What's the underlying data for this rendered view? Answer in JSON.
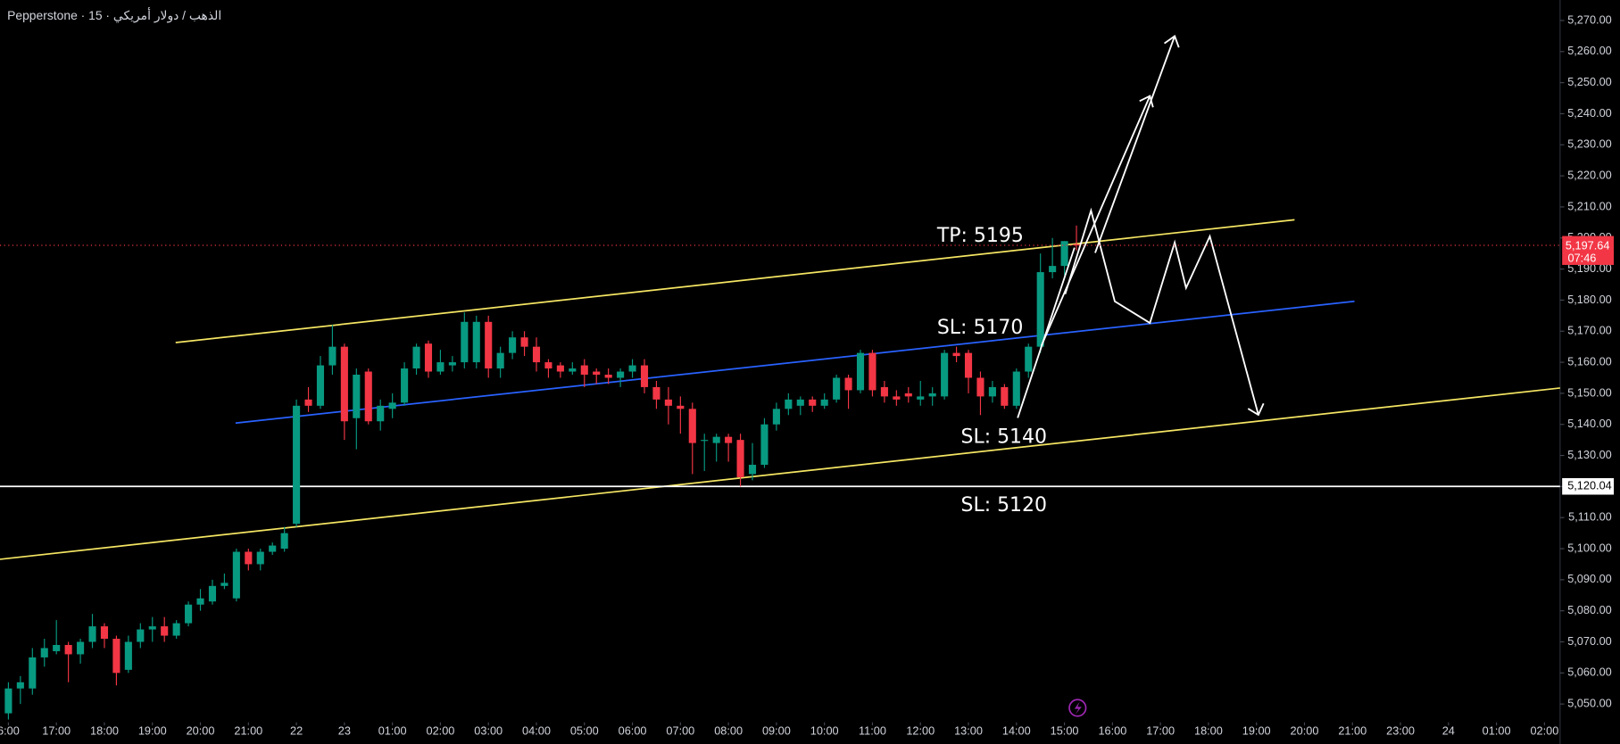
{
  "chart_data": {
    "type": "candlestick",
    "title": "Pepperstone · 15 · الذهب / دولار أمريكي",
    "up_color": "#089981",
    "down_color": "#f23645",
    "open": [
      5047,
      5055,
      5055,
      5065,
      5067,
      5069,
      5066,
      5070,
      5075,
      5071,
      5061,
      5070,
      5074,
      5075,
      5072,
      5076,
      5082,
      5083,
      5088,
      5084,
      5099,
      5095,
      5099,
      5100,
      5108,
      5148,
      5146,
      5159,
      5165,
      5142,
      5157,
      5141,
      5145,
      5147,
      5158,
      5166,
      5157,
      5159,
      5160,
      5160,
      5173,
      5158,
      5163,
      5168,
      5165,
      5160,
      5159,
      5157,
      5159,
      5157,
      5156,
      5155,
      5157,
      5159,
      5152,
      5148,
      5146,
      5145,
      5135,
      5134,
      5136,
      5135,
      5124,
      5127,
      5140,
      5145,
      5146,
      5148,
      5146,
      5148,
      5155,
      5151,
      5163,
      5152,
      5149,
      5150,
      5148,
      5149,
      5149,
      5163,
      5163,
      5155,
      5149,
      5152,
      5146,
      5157,
      5165,
      5189,
      5191,
      5198
    ],
    "high": [
      5057,
      5059,
      5068,
      5071,
      5077,
      5070,
      5071,
      5079,
      5076,
      5072,
      5072,
      5076,
      5078,
      5078,
      5077,
      5083,
      5087,
      5090,
      5092,
      5100,
      5100,
      5100,
      5102,
      5107,
      5148,
      5152,
      5162,
      5172,
      5166,
      5158,
      5158,
      5148,
      5150,
      5160,
      5166,
      5167,
      5164,
      5162,
      5176,
      5175,
      5175,
      5165,
      5170,
      5170,
      5168,
      5161,
      5160,
      5160,
      5161,
      5158,
      5158,
      5158,
      5161,
      5161,
      5154,
      5152,
      5149,
      5147,
      5137,
      5137,
      5137,
      5137,
      5134,
      5142,
      5147,
      5150,
      5149,
      5149,
      5150,
      5156,
      5156,
      5164,
      5164,
      5154,
      5151,
      5152,
      5154,
      5152,
      5164,
      5165,
      5164,
      5157,
      5154,
      5153,
      5158,
      5166,
      5195,
      5200,
      5199,
      5204
    ],
    "low": [
      5045,
      5050,
      5053,
      5062,
      5066,
      5057,
      5063,
      5068,
      5068,
      5056,
      5060,
      5068,
      5070,
      5070,
      5071,
      5075,
      5080,
      5082,
      5087,
      5083,
      5093,
      5093,
      5098,
      5099,
      5107,
      5144,
      5145,
      5156,
      5135,
      5132,
      5140,
      5138,
      5142,
      5146,
      5156,
      5155,
      5156,
      5157,
      5158,
      5158,
      5155,
      5155,
      5161,
      5162,
      5157,
      5155,
      5155,
      5156,
      5152,
      5153,
      5153,
      5152,
      5155,
      5150,
      5145,
      5140,
      5137,
      5124,
      5125,
      5128,
      5128,
      5120,
      5122,
      5126,
      5138,
      5143,
      5143,
      5144,
      5145,
      5147,
      5145,
      5150,
      5149,
      5147,
      5146,
      5147,
      5146,
      5146,
      5148,
      5160,
      5150,
      5143,
      5147,
      5145,
      5145,
      5155,
      5163,
      5187,
      5188,
      5196
    ],
    "close": [
      5055,
      5057,
      5065,
      5068,
      5069,
      5066,
      5070,
      5075,
      5071,
      5060,
      5070,
      5074,
      5075,
      5072,
      5076,
      5082,
      5084,
      5088,
      5089,
      5099,
      5095,
      5099,
      5101,
      5105,
      5146,
      5146,
      5159,
      5165,
      5141,
      5156,
      5141,
      5146,
      5147,
      5158,
      5165,
      5157,
      5160,
      5160,
      5173,
      5173,
      5158,
      5163,
      5168,
      5165,
      5160,
      5158,
      5157,
      5158,
      5156,
      5156,
      5155,
      5157,
      5159,
      5152,
      5148,
      5146,
      5145,
      5134,
      5135,
      5136,
      5134,
      5123,
      5127,
      5140,
      5145,
      5148,
      5148,
      5146,
      5148,
      5155,
      5151,
      5163,
      5151,
      5149,
      5148,
      5149,
      5149,
      5150,
      5163,
      5162,
      5155,
      5149,
      5152,
      5146,
      5157,
      5165,
      5189,
      5191,
      5199,
      5197.64
    ],
    "xlim": [
      -0.7,
      129.3
    ],
    "xticks": [
      {
        "value": 0,
        "label": "6:00"
      },
      {
        "value": 4,
        "label": "17:00"
      },
      {
        "value": 8,
        "label": "18:00"
      },
      {
        "value": 12,
        "label": "19:00"
      },
      {
        "value": 16,
        "label": "20:00"
      },
      {
        "value": 20,
        "label": "21:00"
      },
      {
        "value": 24,
        "label": "22"
      },
      {
        "value": 28,
        "label": "23"
      },
      {
        "value": 32,
        "label": "01:00"
      },
      {
        "value": 36,
        "label": "02:00"
      },
      {
        "value": 40,
        "label": "03:00"
      },
      {
        "value": 44,
        "label": "04:00"
      },
      {
        "value": 48,
        "label": "05:00"
      },
      {
        "value": 52,
        "label": "06:00"
      },
      {
        "value": 56,
        "label": "07:00"
      },
      {
        "value": 60,
        "label": "08:00"
      },
      {
        "value": 64,
        "label": "09:00"
      },
      {
        "value": 68,
        "label": "10:00"
      },
      {
        "value": 72,
        "label": "11:00"
      },
      {
        "value": 76,
        "label": "12:00"
      },
      {
        "value": 80,
        "label": "13:00"
      },
      {
        "value": 84,
        "label": "14:00"
      },
      {
        "value": 88,
        "label": "15:00"
      },
      {
        "value": 92,
        "label": "16:00"
      },
      {
        "value": 96,
        "label": "17:00"
      },
      {
        "value": 100,
        "label": "18:00"
      },
      {
        "value": 104,
        "label": "19:00"
      },
      {
        "value": 108,
        "label": "20:00"
      },
      {
        "value": 112,
        "label": "21:00"
      },
      {
        "value": 116,
        "label": "23:00"
      },
      {
        "value": 120,
        "label": "24"
      },
      {
        "value": 124,
        "label": "01:00"
      },
      {
        "value": 128,
        "label": "02:00"
      }
    ],
    "ylim": [
      5044.1,
      5276.6
    ],
    "yticks": [
      {
        "value": 5050,
        "label": "5,050.00"
      },
      {
        "value": 5060,
        "label": "5,060.00"
      },
      {
        "value": 5070,
        "label": "5,070.00"
      },
      {
        "value": 5080,
        "label": "5,080.00"
      },
      {
        "value": 5090,
        "label": "5,090.00"
      },
      {
        "value": 5100,
        "label": "5,100.00"
      },
      {
        "value": 5110,
        "label": "5,110.00"
      },
      {
        "value": 5120,
        "label": "5,120.00"
      },
      {
        "value": 5130,
        "label": "5,130.00"
      },
      {
        "value": 5140,
        "label": "5,140.00"
      },
      {
        "value": 5150,
        "label": "5,150.00"
      },
      {
        "value": 5160,
        "label": "5,160.00"
      },
      {
        "value": 5170,
        "label": "5,170.00"
      },
      {
        "value": 5180,
        "label": "5,180.00"
      },
      {
        "value": 5190,
        "label": "5,190.00"
      },
      {
        "value": 5200,
        "label": "5,200.00"
      },
      {
        "value": 5210,
        "label": "5,210.00"
      },
      {
        "value": 5220,
        "label": "5,220.00"
      },
      {
        "value": 5230,
        "label": "5,230.00"
      },
      {
        "value": 5240,
        "label": "5,240.00"
      },
      {
        "value": 5250,
        "label": "5,250.00"
      },
      {
        "value": 5260,
        "label": "5,260.00"
      },
      {
        "value": 5270,
        "label": "5,270.00"
      }
    ],
    "current_price": {
      "value": 5197.64,
      "label": "5,197.64",
      "countdown": "07:46"
    },
    "horizontal_line": {
      "value": 5120.04,
      "label": "5,120.04"
    },
    "annotations": [
      "TP: 5195",
      "SL: 5170",
      "SL: 5140",
      "SL: 5120"
    ]
  }
}
